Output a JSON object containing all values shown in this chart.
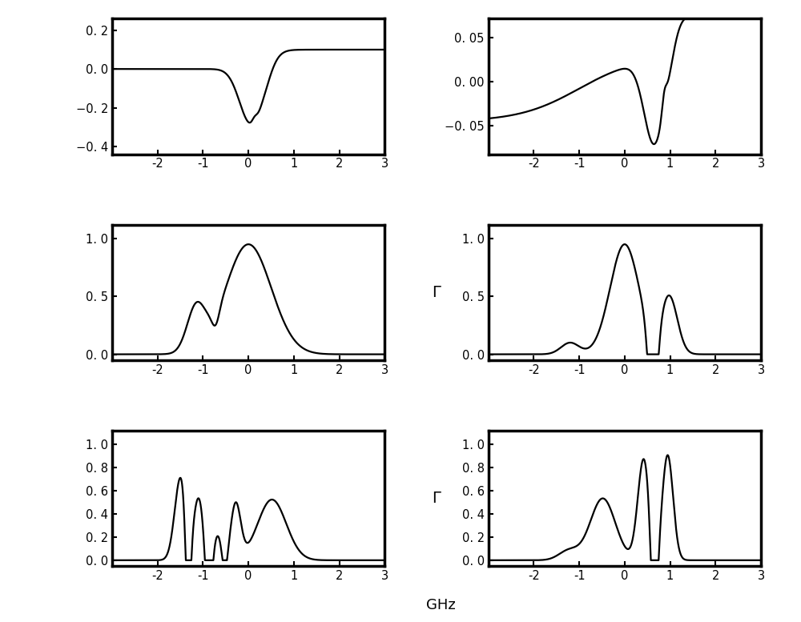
{
  "xlabel": "GHz",
  "xlabel_fontsize": 13,
  "xrange": [
    -3,
    3
  ],
  "xticks": [
    -2,
    -1,
    0,
    1,
    2,
    3
  ],
  "linewidth": 1.6,
  "linecolor": "#000000",
  "background": "#ffffff",
  "plots": [
    {
      "row": 0,
      "col": 0,
      "ylim": [
        -0.44,
        0.26
      ],
      "yticks": [
        -0.4,
        -0.2,
        0.0,
        0.2
      ],
      "ytick_labels": [
        "−0. 4",
        "−0. 2",
        "0. 0",
        "0. 2"
      ],
      "side_label": "",
      "type": "dispersion_left"
    },
    {
      "row": 0,
      "col": 1,
      "ylim": [
        -0.082,
        0.072
      ],
      "yticks": [
        -0.05,
        0.0,
        0.05
      ],
      "ytick_labels": [
        "−0. 05",
        "0. 00",
        "0. 05"
      ],
      "side_label": "",
      "type": "dispersion_right"
    },
    {
      "row": 1,
      "col": 0,
      "ylim": [
        -0.05,
        1.12
      ],
      "yticks": [
        0.0,
        0.5,
        1.0
      ],
      "ytick_labels": [
        "0. 0",
        "0. 5",
        "1. 0"
      ],
      "side_label": "",
      "type": "transmission_left1"
    },
    {
      "row": 1,
      "col": 1,
      "ylim": [
        -0.05,
        1.12
      ],
      "yticks": [
        0.0,
        0.5,
        1.0
      ],
      "ytick_labels": [
        "0. 0",
        "0. 5",
        "1. 0"
      ],
      "side_label": "Γ",
      "type": "transmission_right1"
    },
    {
      "row": 2,
      "col": 0,
      "ylim": [
        -0.05,
        1.12
      ],
      "yticks": [
        0.0,
        0.2,
        0.4,
        0.6,
        0.8,
        1.0
      ],
      "ytick_labels": [
        "0. 0",
        "0. 2",
        "0. 4",
        "0. 6",
        "0. 8",
        "1. 0"
      ],
      "side_label": "Γ",
      "type": "transmission_left2"
    },
    {
      "row": 2,
      "col": 1,
      "ylim": [
        -0.05,
        1.12
      ],
      "yticks": [
        0.0,
        0.2,
        0.4,
        0.6,
        0.8,
        1.0
      ],
      "ytick_labels": [
        "0. 0",
        "0. 2",
        "0. 4",
        "0. 6",
        "0. 8",
        "1. 0"
      ],
      "side_label": "",
      "type": "transmission_right2"
    }
  ]
}
